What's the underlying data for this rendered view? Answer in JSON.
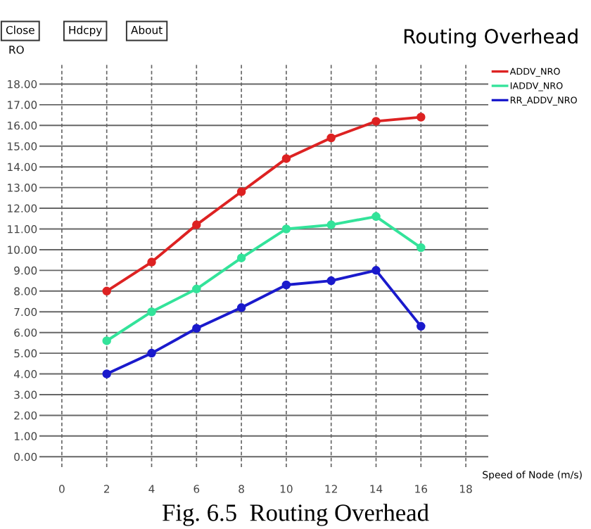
{
  "chart_data": {
    "type": "line",
    "title": "Routing Overhead",
    "xlabel": "Speed of Node (m/s)",
    "ylabel": "RO",
    "x": [
      2,
      4,
      6,
      8,
      10,
      12,
      14,
      16
    ],
    "series": [
      {
        "name": "ADDV_NRO",
        "color": "#dd2222",
        "values": [
          8.0,
          9.4,
          11.2,
          12.8,
          14.4,
          15.4,
          16.2,
          16.4
        ]
      },
      {
        "name": "IADDV_NRO",
        "color": "#33e39a",
        "values": [
          5.6,
          7.0,
          8.1,
          9.6,
          11.0,
          11.2,
          11.6,
          10.1
        ]
      },
      {
        "name": "RR_ADDV_NRO",
        "color": "#1a1acc",
        "values": [
          4.0,
          5.0,
          6.2,
          7.2,
          8.3,
          8.5,
          9.0,
          6.3
        ]
      }
    ],
    "xlim": [
      -1,
      19
    ],
    "ylim": [
      -0.5,
      19
    ],
    "xticks": [
      0,
      2,
      4,
      6,
      8,
      10,
      12,
      14,
      16,
      18
    ],
    "yticks": [
      {
        "value": 0,
        "label": "0.00"
      },
      {
        "value": 1,
        "label": "1.00"
      },
      {
        "value": 2,
        "label": "2.00"
      },
      {
        "value": 3,
        "label": "3.00"
      },
      {
        "value": 4,
        "label": "4.00"
      },
      {
        "value": 5,
        "label": "5.00"
      },
      {
        "value": 6,
        "label": "6.00"
      },
      {
        "value": 7,
        "label": "7.00"
      },
      {
        "value": 8,
        "label": "8.00"
      },
      {
        "value": 9,
        "label": "9.00"
      },
      {
        "value": 10,
        "label": "10.00"
      },
      {
        "value": 11,
        "label": "11.00"
      },
      {
        "value": 12,
        "label": "12.00"
      },
      {
        "value": 13,
        "label": "13.00"
      },
      {
        "value": 14,
        "label": "14.00"
      },
      {
        "value": 15,
        "label": "15.00"
      },
      {
        "value": 16,
        "label": "16.00"
      },
      {
        "value": 17,
        "label": "17.00"
      },
      {
        "value": 18,
        "label": "18.00"
      }
    ],
    "grid": true,
    "legend": "top right",
    "marker": "circle",
    "line_style": "solid",
    "annotations": [
      "Close",
      "Hdcpy",
      "About",
      "Fig. 6.5  Routing Overhead"
    ]
  }
}
